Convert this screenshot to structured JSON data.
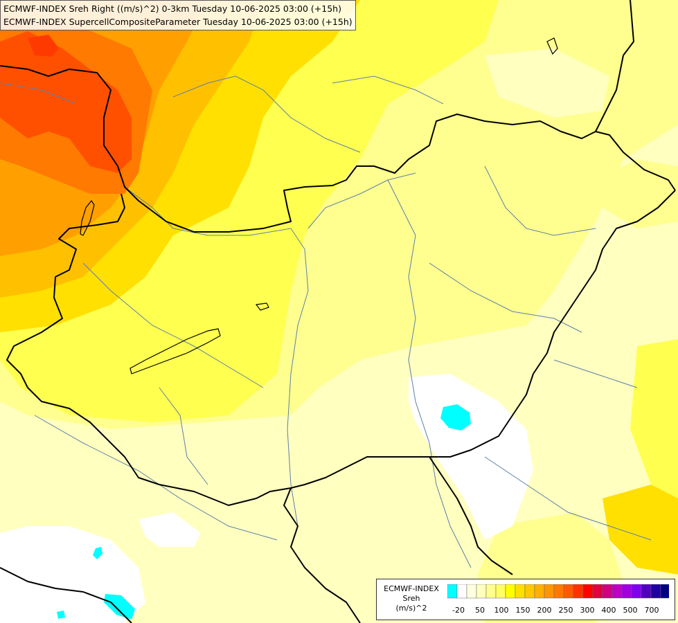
{
  "title": {
    "line1": "ECMWF-INDEX Sreh Right ((m/s)^2) 0-3km Tuesday 10-06-2025 03:00 (+15h)",
    "line2": "ECMWF-INDEX SupercellCompositeParameter Tuesday 10-06-2025 03:00 (+15h)"
  },
  "legend": {
    "title_lines": [
      "ECMWF-INDEX",
      "Sreh",
      "(m/s)^2"
    ],
    "swatch_colors": [
      "#00ffff",
      "#ffffff",
      "#ffffe0",
      "#ffffc0",
      "#ffff90",
      "#ffff60",
      "#ffff00",
      "#ffe000",
      "#ffc800",
      "#ffb000",
      "#ff9600",
      "#ff7800",
      "#ff5a00",
      "#ff3200",
      "#ff0000",
      "#e00040",
      "#d00080",
      "#c000c0",
      "#a000e0",
      "#8000f0",
      "#5000c0",
      "#2000a0",
      "#000080"
    ],
    "ticks": [
      {
        "label": "-20",
        "index": 1
      },
      {
        "label": "50",
        "index": 3
      },
      {
        "label": "100",
        "index": 5
      },
      {
        "label": "150",
        "index": 7
      },
      {
        "label": "200",
        "index": 9
      },
      {
        "label": "250",
        "index": 11
      },
      {
        "label": "300",
        "index": 13
      },
      {
        "label": "400",
        "index": 15
      },
      {
        "label": "500",
        "index": 17
      },
      {
        "label": "700",
        "index": 19
      }
    ]
  }
}
